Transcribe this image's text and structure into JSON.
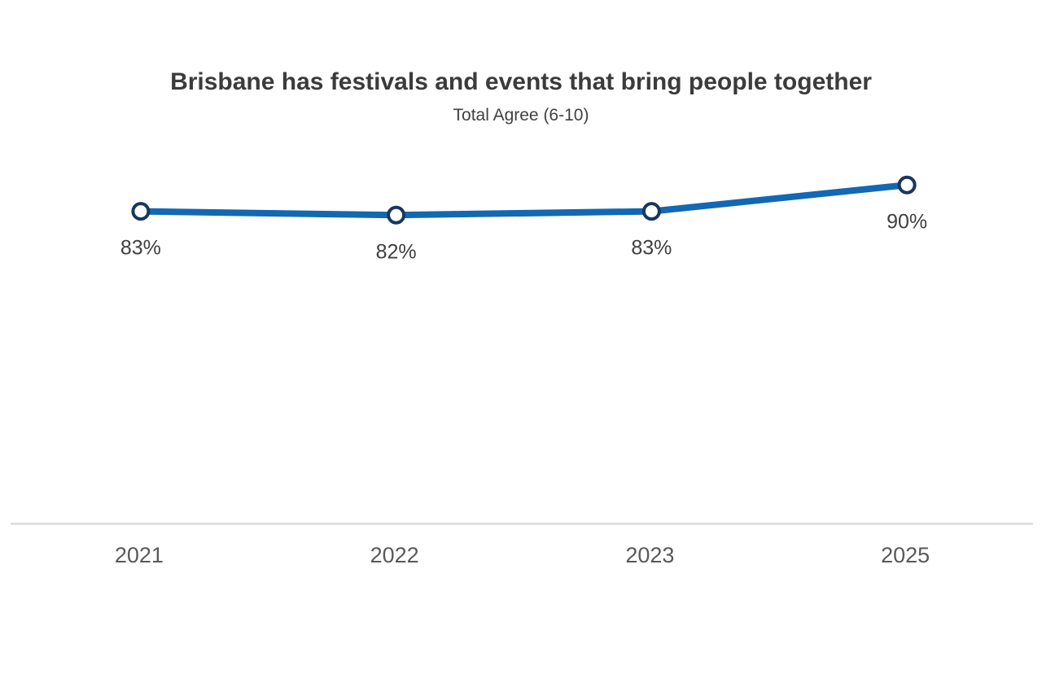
{
  "header": {
    "title": "Brisbane has festivals and events that bring people together",
    "subtitle": "Total Agree (6-10)"
  },
  "chart_data": {
    "type": "line",
    "title": "Brisbane has festivals and events that bring people together",
    "subtitle": "Total Agree (6-10)",
    "categories": [
      "2021",
      "2022",
      "2023",
      "2025"
    ],
    "series": [
      {
        "name": "Total Agree (6-10)",
        "values": [
          83,
          82,
          83,
          90
        ],
        "labels": [
          "83%",
          "82%",
          "83%",
          "90%"
        ]
      }
    ],
    "xlabel": "",
    "ylabel": "",
    "ylim": [
      0,
      100
    ],
    "grid": false,
    "legend_position": "none",
    "colors": {
      "line": "#1268b3",
      "marker_fill": "#ffffff",
      "marker_stroke": "#17375e",
      "data_label": "#404040",
      "axis_line": "#e0e0e0",
      "axis_label": "#595959"
    }
  }
}
